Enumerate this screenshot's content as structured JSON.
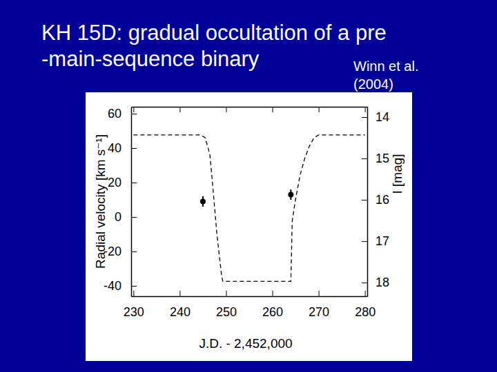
{
  "chart_data": {
    "type": "scatter",
    "title": [
      "KH 15D: gradual occultation of a pre",
      "-main-sequence binary"
    ],
    "annotations": [
      "Winn et al.",
      "(2004)"
    ],
    "x_label": "J.D. - 2,452,000",
    "y_label": "Radial velocity [km s⁻¹]",
    "y2_label": "I [mag]",
    "xlim": [
      229.5,
      280.5
    ],
    "xticks": [
      230,
      240,
      250,
      260,
      270,
      280
    ],
    "ylim": [
      -46,
      64
    ],
    "yticks": [
      -40,
      -20,
      0,
      20,
      40,
      60
    ],
    "y2lim": [
      18.33,
      13.75
    ],
    "y2ticks": [
      14,
      15,
      16,
      17,
      18
    ],
    "series": [
      {
        "type": "scatter",
        "color": "#000000",
        "marker": "circle",
        "x": [
          245,
          264
        ],
        "values": [
          9,
          13
        ],
        "errors": [
          3,
          3
        ]
      },
      {
        "type": "line",
        "axis": "y2",
        "color": "#000000",
        "line_style": "dashed",
        "x": [
          230,
          244.5,
          245.5,
          246.5,
          247,
          248,
          249,
          249.3,
          264,
          264.3,
          265,
          266,
          267,
          268,
          269,
          270,
          280
        ],
        "values": [
          14.43,
          14.43,
          14.5,
          14.9,
          15.5,
          16.8,
          17.8,
          17.97,
          17.97,
          16.5,
          16,
          15.4,
          15,
          14.7,
          14.5,
          14.43,
          14.43
        ]
      }
    ]
  }
}
